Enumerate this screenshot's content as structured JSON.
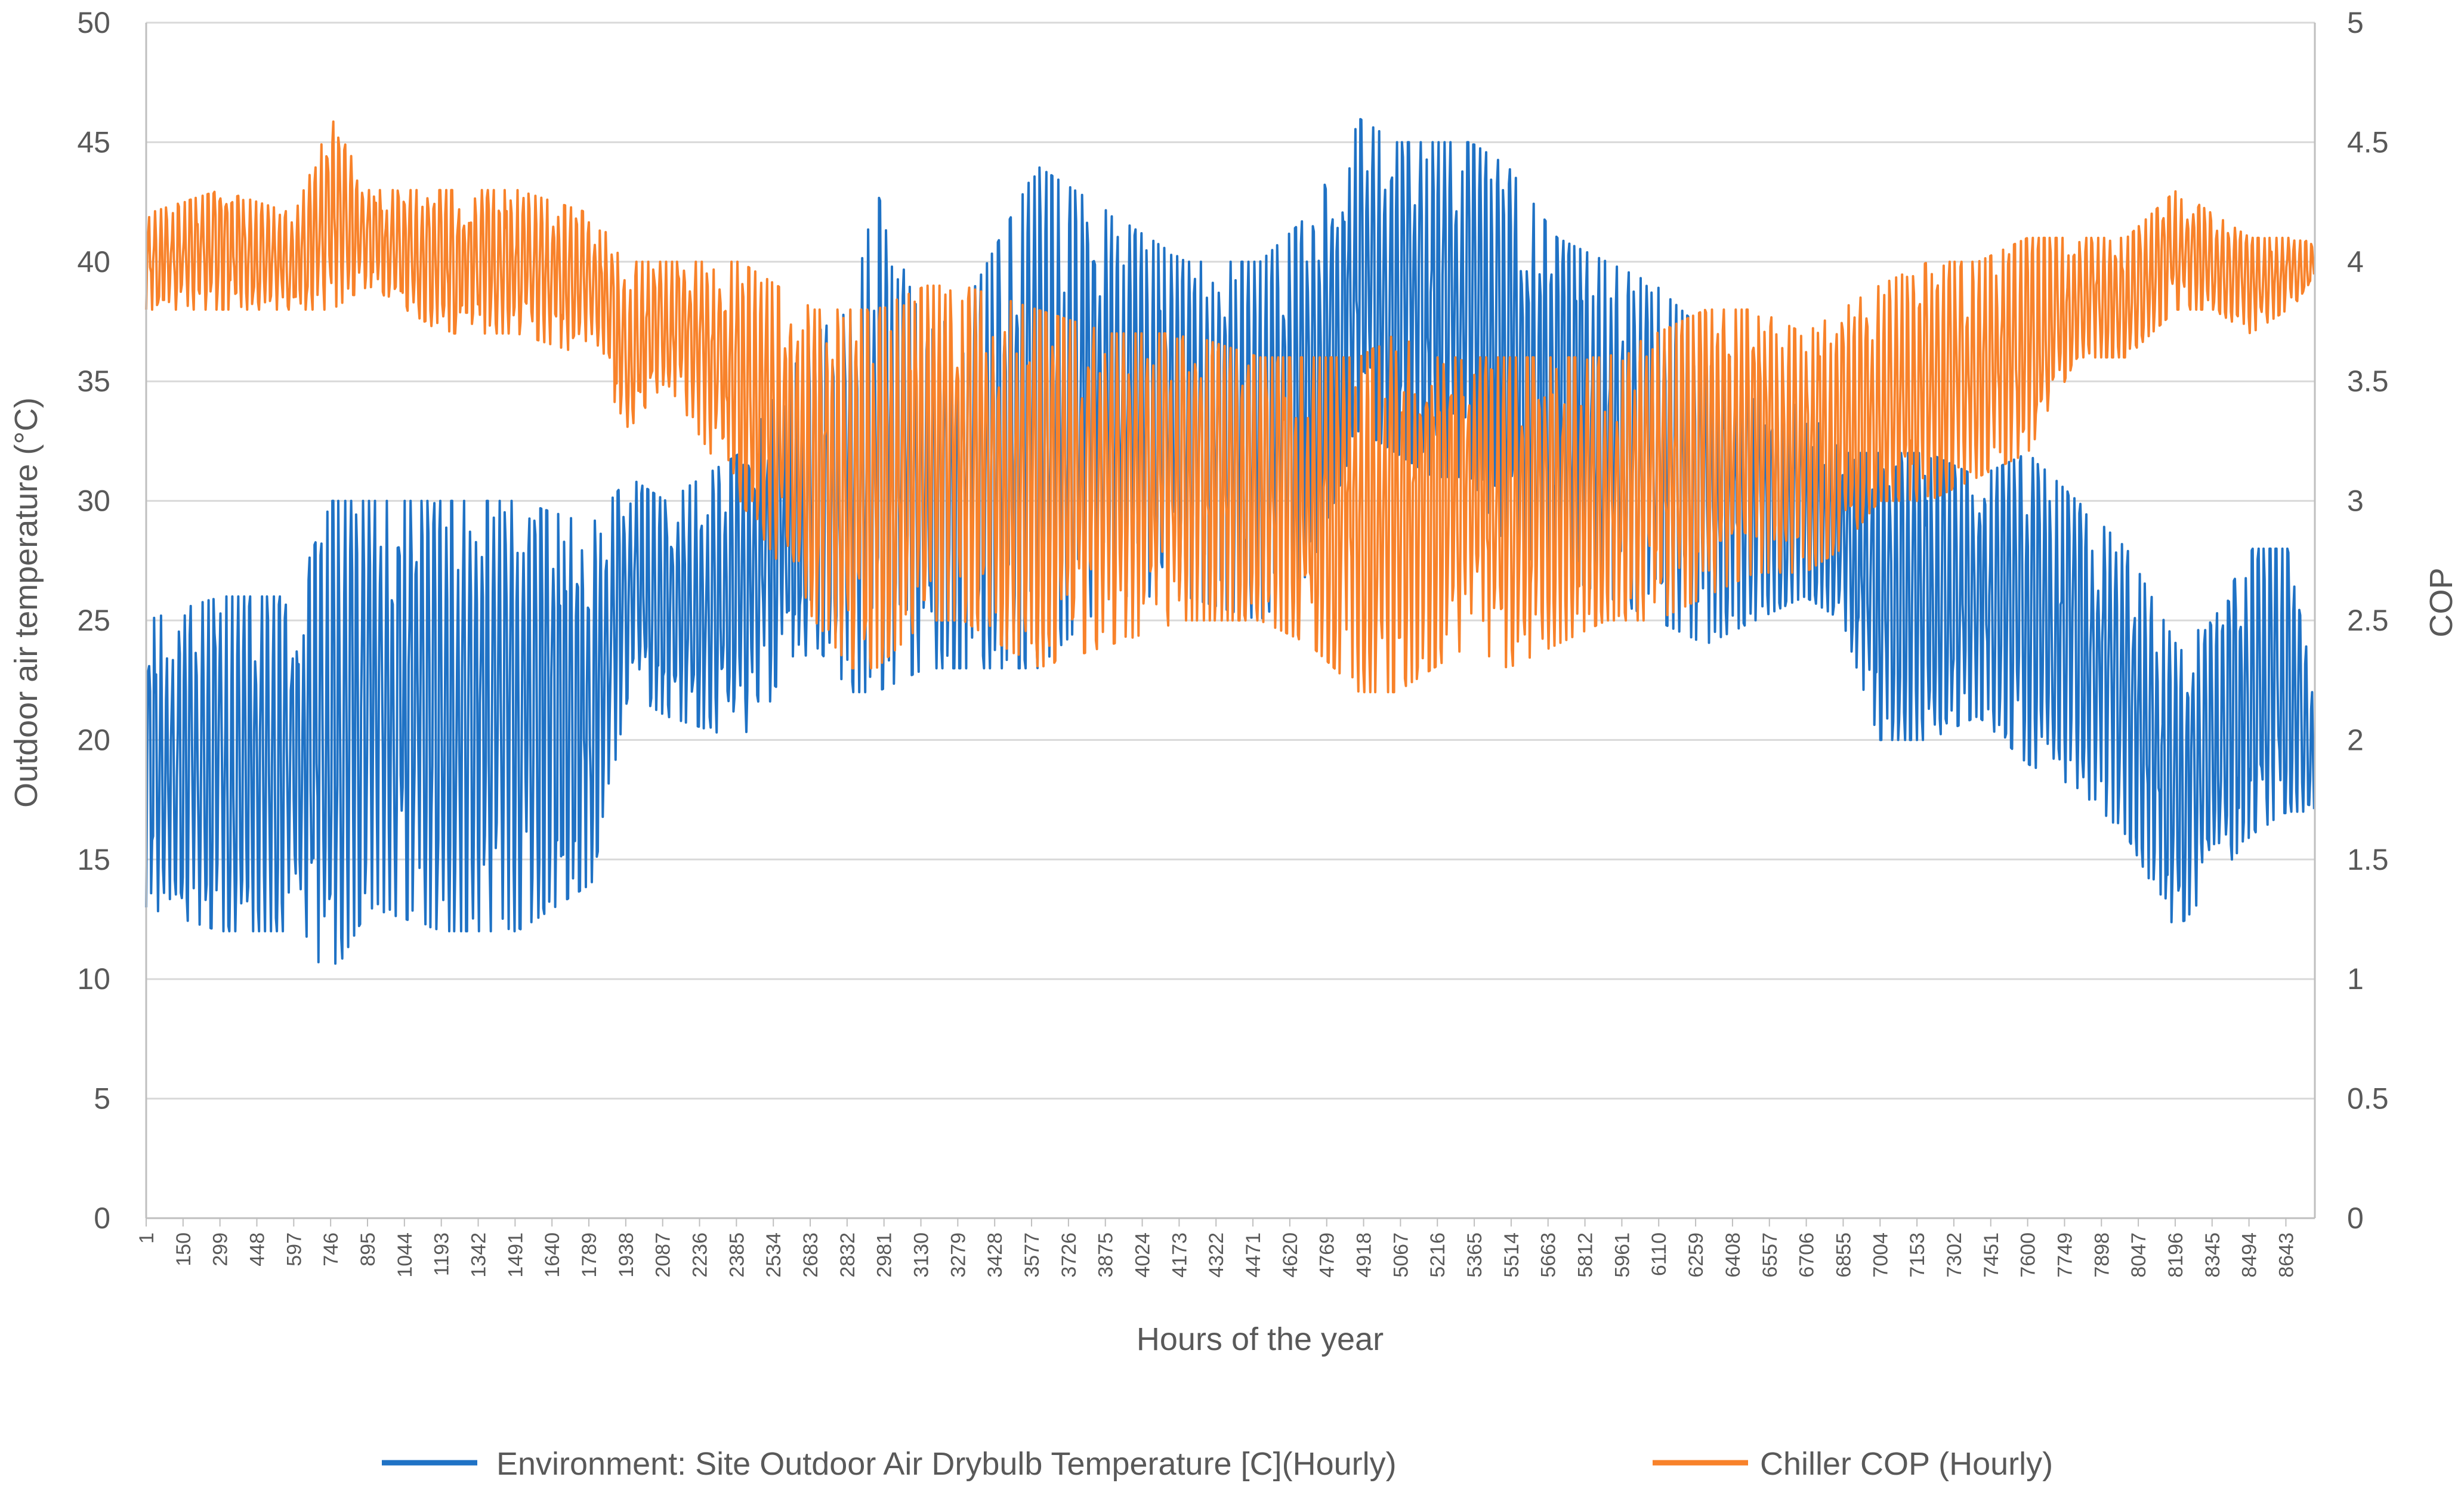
{
  "chart_data": {
    "type": "line",
    "title": "",
    "xlabel": "Hours of the year",
    "ylabel_left": "Outdoor air temperature (°C)",
    "ylabel_right": "COP",
    "x_range": [
      1,
      8760
    ],
    "ylim_left": [
      0,
      50
    ],
    "ylim_right": [
      0,
      5
    ],
    "yticks_left": [
      "0",
      "5",
      "10",
      "15",
      "20",
      "25",
      "30",
      "35",
      "40",
      "45",
      "50"
    ],
    "yticks_right": [
      "0",
      "0.5",
      "1",
      "1.5",
      "2",
      "2.5",
      "3",
      "3.5",
      "4",
      "4.5",
      "5"
    ],
    "xtick_labels": [
      "1",
      "150",
      "299",
      "448",
      "597",
      "746",
      "895",
      "1044",
      "1193",
      "1342",
      "1491",
      "1640",
      "1789",
      "1938",
      "2087",
      "2236",
      "2385",
      "2534",
      "2683",
      "2832",
      "2981",
      "3130",
      "3279",
      "3428",
      "3577",
      "3726",
      "3875",
      "4024",
      "4173",
      "4322",
      "4471",
      "4620",
      "4769",
      "4918",
      "5067",
      "5216",
      "5365",
      "5514",
      "5663",
      "5812",
      "5961",
      "6110",
      "6259",
      "6408",
      "6557",
      "6706",
      "6855",
      "7004",
      "7153",
      "7302",
      "7451",
      "7600",
      "7749",
      "7898",
      "8047",
      "8196",
      "8345",
      "8494",
      "8643"
    ],
    "grid": true,
    "legend_position": "bottom",
    "series": [
      {
        "name": "Environment: Site Outdoor Air Drybulb Temperature [C](Hourly)",
        "axis": "left",
        "color": "#1F72C5",
        "note": "hourly values sampled every 24 h; band_low/band_high give the approximate daily min/max envelope",
        "sample_hours": [
          1,
          300,
          600,
          750,
          900,
          1200,
          1500,
          1800,
          1950,
          2100,
          2400,
          2700,
          2850,
          2950,
          3150,
          3300,
          3600,
          3900,
          4200,
          4500,
          4700,
          4900,
          5050,
          5200,
          5350,
          5500,
          5700,
          5900,
          6100,
          6300,
          6500,
          6700,
          6850,
          7000,
          7200,
          7400,
          7600,
          7800,
          8000,
          8200,
          8350,
          8500,
          8650,
          8760
        ],
        "band_low": [
          13,
          12,
          12,
          10,
          13,
          12,
          12,
          14,
          22,
          21,
          20,
          24,
          22,
          22,
          23,
          23,
          23,
          26,
          26,
          25,
          27,
          33,
          32,
          31,
          31,
          28,
          27,
          26,
          25,
          24,
          25,
          26,
          25,
          20,
          20,
          21,
          19,
          18,
          16,
          12,
          14,
          16,
          17,
          17
        ],
        "band_high": [
          25,
          26,
          26,
          30,
          30,
          30,
          30,
          29,
          31,
          30,
          32,
          37,
          38,
          43,
          37,
          38,
          44,
          42,
          40,
          40,
          42,
          46,
          45,
          45,
          45,
          44,
          41,
          40,
          39,
          37,
          35,
          34,
          32,
          32,
          32,
          31,
          32,
          30,
          28,
          24,
          25,
          28,
          28,
          22
        ]
      },
      {
        "name": "Chiller COP (Hourly)",
        "axis": "right",
        "color": "#F8822A",
        "note": "hourly values sampled every 24 h; band_low/band_high give the approximate daily min/max envelope",
        "sample_hours": [
          1,
          300,
          600,
          750,
          900,
          1200,
          1500,
          1800,
          1950,
          2100,
          2400,
          2700,
          2850,
          2950,
          3150,
          3300,
          3600,
          3900,
          4200,
          4500,
          4700,
          4900,
          5050,
          5200,
          5350,
          5500,
          5700,
          5900,
          6100,
          6300,
          6500,
          6700,
          6850,
          7000,
          7200,
          7400,
          7600,
          7800,
          8000,
          8200,
          8350,
          8500,
          8650,
          8760
        ],
        "band_low": [
          3.8,
          3.8,
          3.8,
          3.8,
          3.9,
          3.7,
          3.7,
          3.6,
          3.3,
          3.5,
          3.0,
          2.5,
          2.3,
          2.3,
          2.5,
          2.5,
          2.3,
          2.4,
          2.5,
          2.5,
          2.4,
          2.2,
          2.2,
          2.3,
          2.4,
          2.3,
          2.4,
          2.5,
          2.5,
          2.6,
          2.7,
          2.7,
          2.8,
          3.0,
          3.0,
          3.1,
          3.2,
          3.6,
          3.6,
          3.8,
          3.8,
          3.7,
          3.8,
          3.9
        ],
        "band_high": [
          4.2,
          4.3,
          4.2,
          4.6,
          4.3,
          4.3,
          4.3,
          4.2,
          4.0,
          4.0,
          4.0,
          3.8,
          3.8,
          3.8,
          3.9,
          3.9,
          3.8,
          3.7,
          3.7,
          3.6,
          3.6,
          3.6,
          3.7,
          3.6,
          3.6,
          3.6,
          3.6,
          3.6,
          3.7,
          3.8,
          3.8,
          3.7,
          3.8,
          3.9,
          4.0,
          4.0,
          4.1,
          4.1,
          4.1,
          4.3,
          4.2,
          4.1,
          4.1,
          4.1
        ]
      }
    ]
  },
  "legend": {
    "items": [
      {
        "label": "Environment: Site Outdoor Air Drybulb Temperature [C](Hourly)",
        "color": "#1F72C5"
      },
      {
        "label": "Chiller COP (Hourly)",
        "color": "#F8822A"
      }
    ]
  }
}
